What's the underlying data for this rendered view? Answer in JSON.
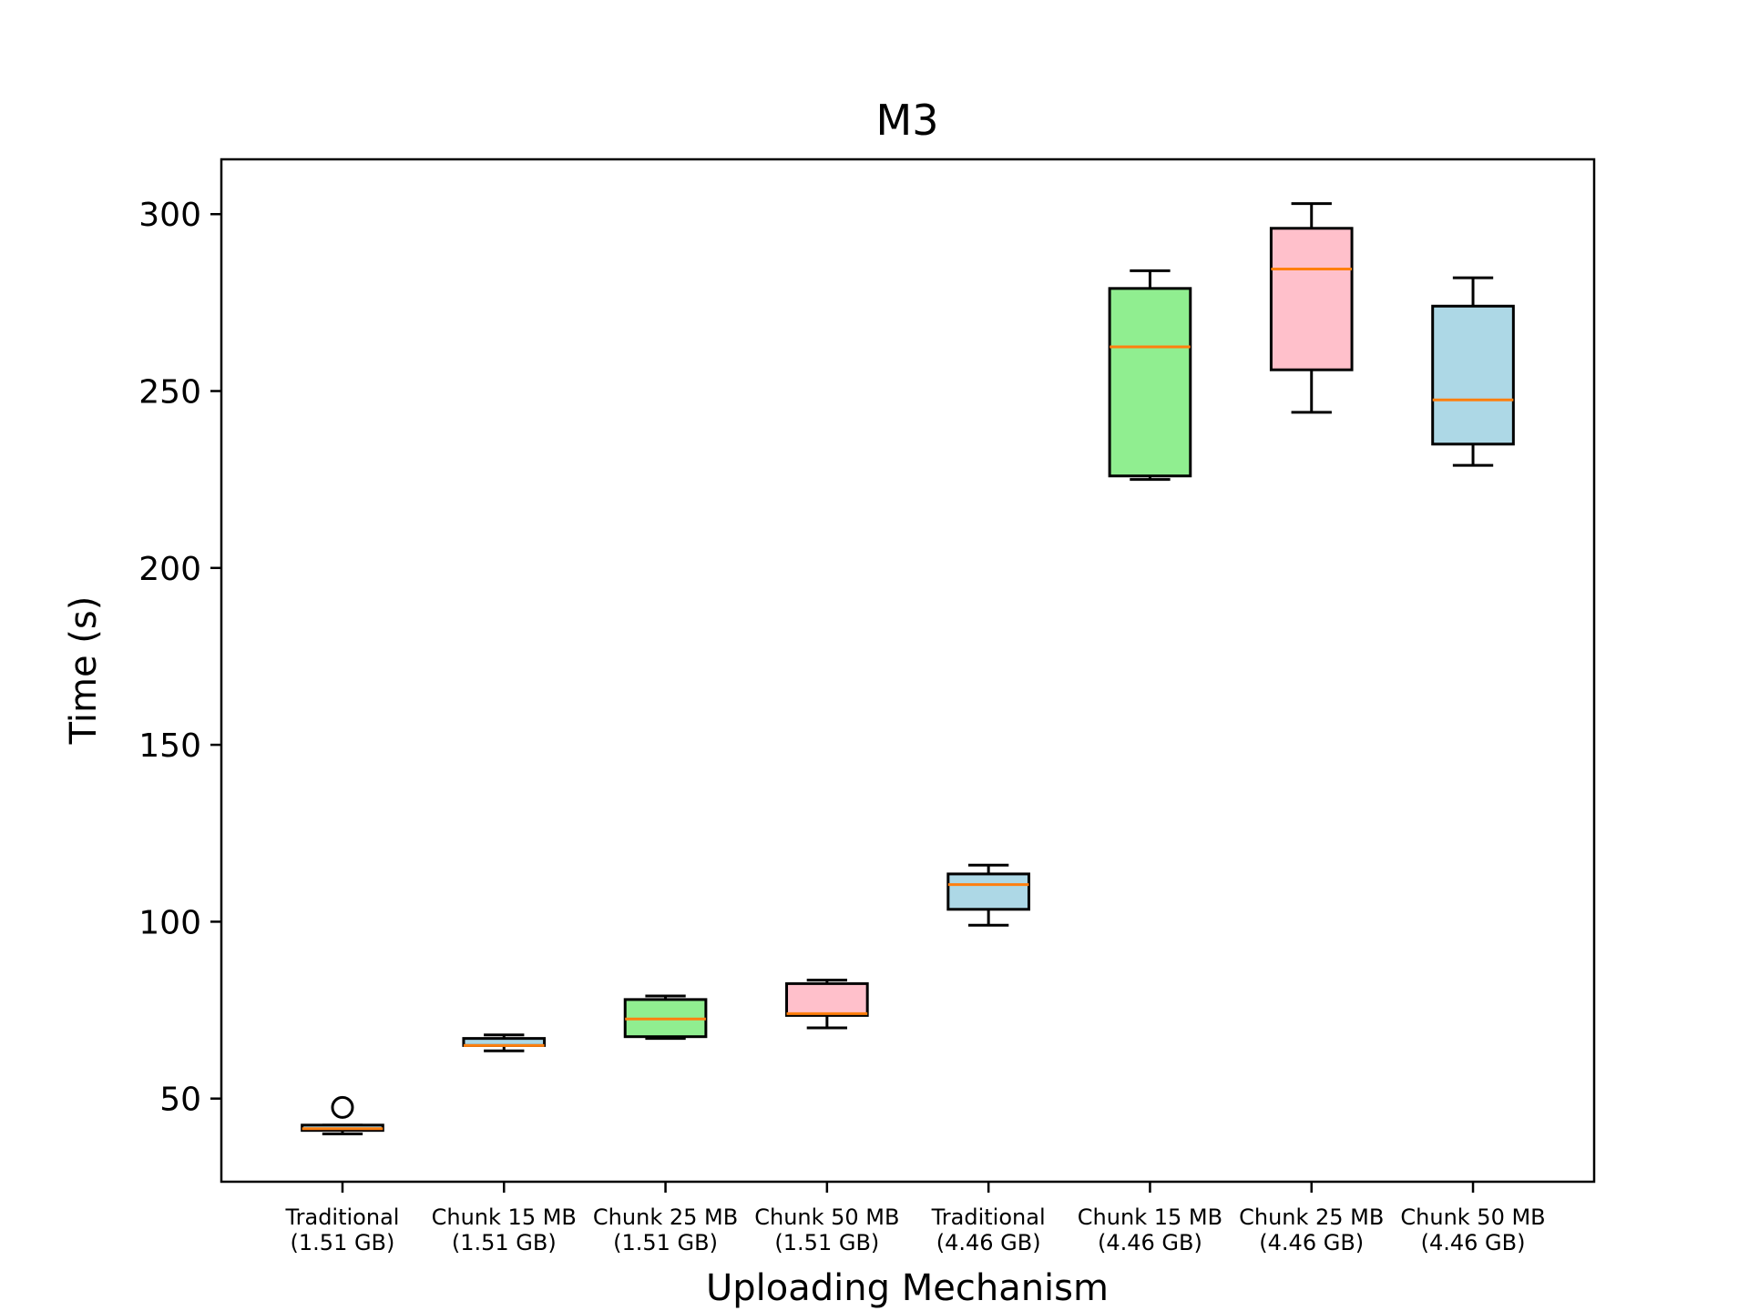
{
  "chart_data": {
    "type": "box",
    "title": "M3",
    "xlabel": "Uploading Mechanism",
    "ylabel": "Time (s)",
    "ylim": [
      26.5,
      315.5
    ],
    "yticks": [
      50,
      100,
      150,
      200,
      250,
      300
    ],
    "grid": false,
    "categories": [
      [
        "Traditional",
        "(1.51 GB)"
      ],
      [
        "Chunk 15 MB",
        "(1.51 GB)"
      ],
      [
        "Chunk 25 MB",
        "(1.51 GB)"
      ],
      [
        "Chunk 50 MB",
        "(1.51 GB)"
      ],
      [
        "Traditional",
        "(4.46 GB)"
      ],
      [
        "Chunk 15 MB",
        "(4.46 GB)"
      ],
      [
        "Chunk 25 MB",
        "(4.46 GB)"
      ],
      [
        "Chunk 50 MB",
        "(4.46 GB)"
      ]
    ],
    "boxes": [
      {
        "whisker_low": 40,
        "q1": 41,
        "median": 41.5,
        "q3": 42.5,
        "whisker_high": 42.5,
        "outliers": [
          47.5
        ],
        "fill": "#add8e6"
      },
      {
        "whisker_low": 63.5,
        "q1": 65,
        "median": 65,
        "q3": 67,
        "whisker_high": 68,
        "outliers": [],
        "fill": "#add8e6"
      },
      {
        "whisker_low": 67,
        "q1": 67.5,
        "median": 72.5,
        "q3": 78,
        "whisker_high": 79,
        "outliers": [],
        "fill": "#90ee90"
      },
      {
        "whisker_low": 70,
        "q1": 73.5,
        "median": 74,
        "q3": 82.5,
        "whisker_high": 83.5,
        "outliers": [],
        "fill": "#ffc0cb"
      },
      {
        "whisker_low": 99,
        "q1": 103.5,
        "median": 110.5,
        "q3": 113.5,
        "whisker_high": 116,
        "outliers": [],
        "fill": "#add8e6"
      },
      {
        "whisker_low": 225,
        "q1": 226,
        "median": 262.5,
        "q3": 279,
        "whisker_high": 284,
        "outliers": [],
        "fill": "#90ee90"
      },
      {
        "whisker_low": 244,
        "q1": 256,
        "median": 284.5,
        "q3": 296,
        "whisker_high": 303,
        "outliers": [],
        "fill": "#ffc0cb"
      },
      {
        "whisker_low": 229,
        "q1": 235,
        "median": 247.5,
        "q3": 274,
        "whisker_high": 282,
        "outliers": [],
        "fill": "#add8e6"
      }
    ],
    "median_color": "#ff7f0e"
  }
}
